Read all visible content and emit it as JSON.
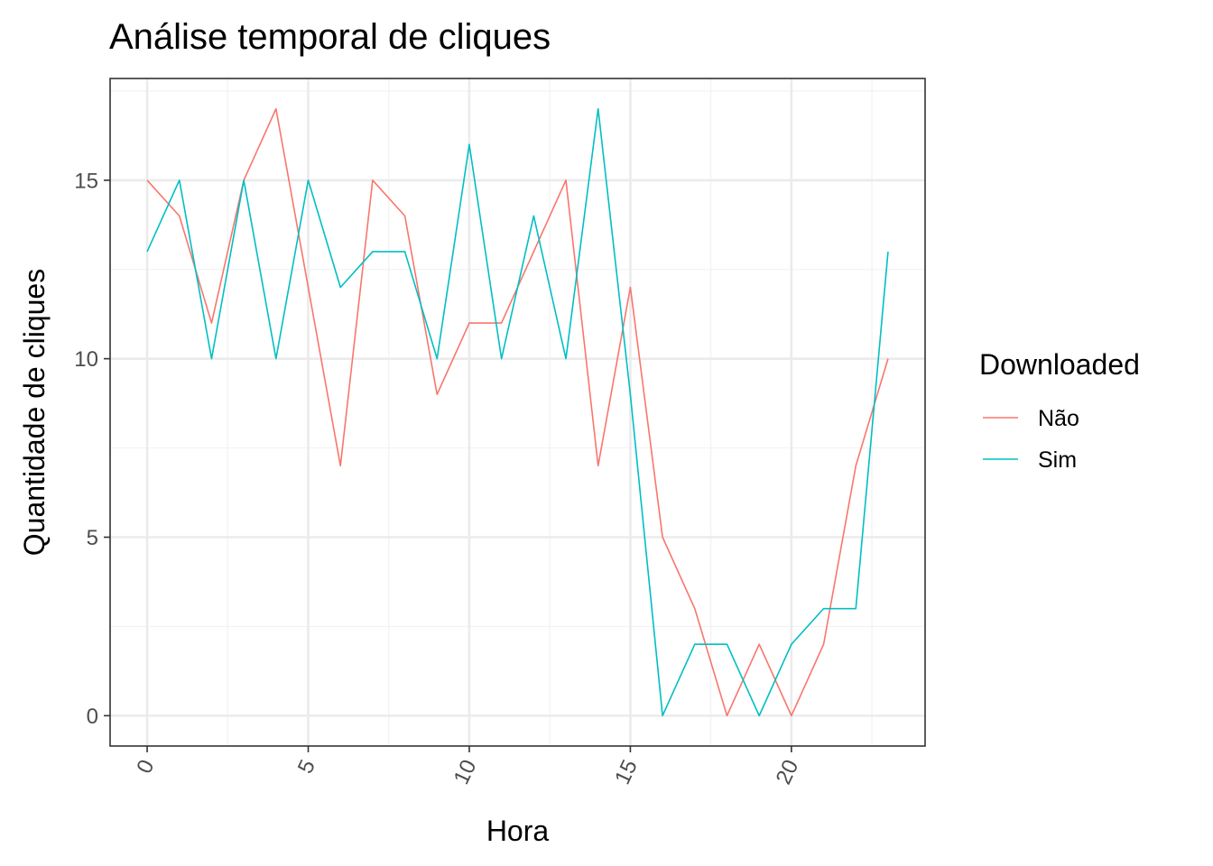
{
  "chart_data": {
    "type": "line",
    "title": "Análise temporal de cliques",
    "xlabel": "Hora",
    "ylabel": "Quantidade de cliques",
    "xlim": [
      -1.15,
      24.15
    ],
    "ylim": [
      -0.85,
      17.85
    ],
    "x_ticks": [
      0,
      5,
      10,
      15,
      20
    ],
    "y_ticks": [
      0,
      5,
      10,
      15
    ],
    "x_tick_labels": [
      "0",
      "5",
      "10",
      "15",
      "20"
    ],
    "y_tick_labels": [
      "0",
      "5",
      "10",
      "15"
    ],
    "x_tick_label_rotation": "angled",
    "grid": true,
    "legend": {
      "title": "Downloaded",
      "position": "right"
    },
    "x": [
      0,
      1,
      2,
      3,
      4,
      5,
      6,
      7,
      8,
      9,
      10,
      11,
      12,
      13,
      14,
      15,
      16,
      17,
      18,
      19,
      20,
      21,
      22,
      23
    ],
    "series": [
      {
        "name": "Não",
        "color": "#F8766D",
        "values": [
          15,
          14,
          11,
          15,
          17,
          12,
          7,
          15,
          14,
          9,
          11,
          11,
          13,
          15,
          7,
          12,
          5,
          3,
          0,
          2,
          0,
          2,
          7,
          10
        ]
      },
      {
        "name": "Sim",
        "color": "#00BFC4",
        "values": [
          13,
          15,
          10,
          15,
          10,
          15,
          12,
          13,
          13,
          10,
          16,
          10,
          14,
          10,
          17,
          9,
          0,
          2,
          2,
          0,
          2,
          3,
          3,
          13
        ]
      }
    ]
  }
}
